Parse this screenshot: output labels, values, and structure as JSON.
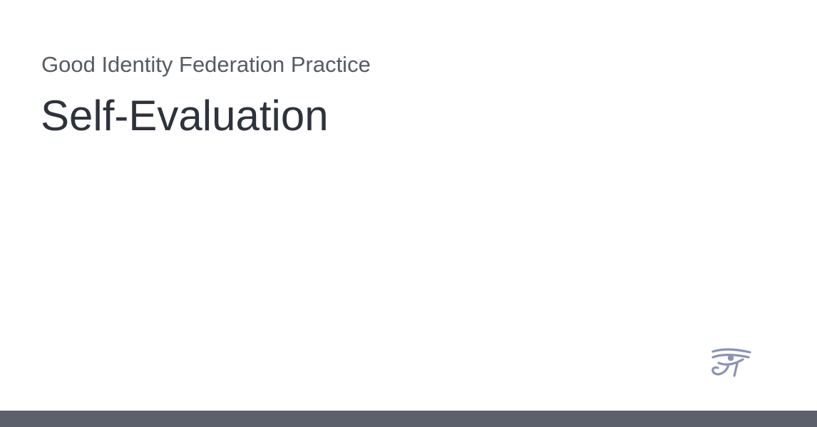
{
  "header": {
    "subtitle": "Good Identity Federation Practice",
    "title": "Self-Evaluation"
  },
  "logo": {
    "icon": "eye-of-horus-icon",
    "color": "#8a93b4"
  },
  "colors": {
    "background": "#ffffff",
    "subtitle_text": "#555b63",
    "title_text": "#2e333b",
    "footer_bar": "#5b606b"
  }
}
